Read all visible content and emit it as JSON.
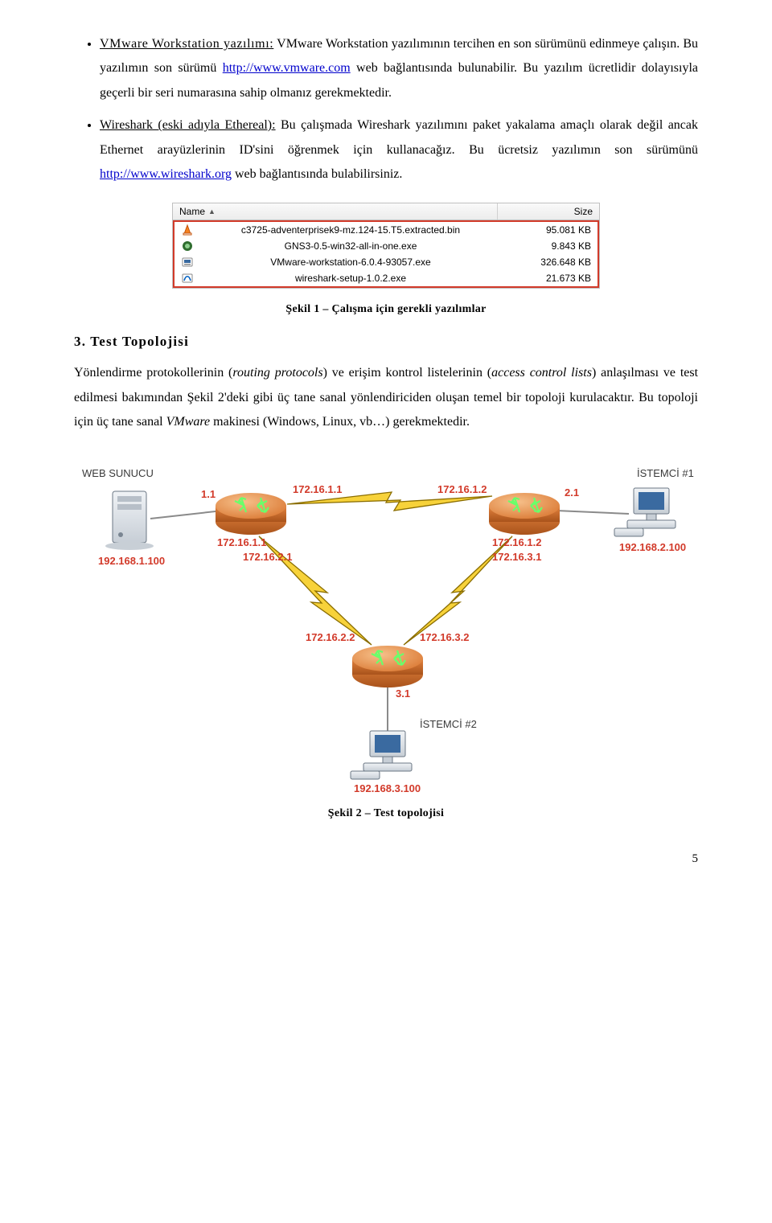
{
  "bullets": {
    "item1": {
      "title": "VMware Workstation yazılımı:",
      "pre": " VMware Workstation yazılımının tercihen en son sürümünü edinmeye çalışın. Bu yazılımın son sürümü ",
      "link": "http://www.vmware.com",
      "post": " web bağlantısında bulunabilir. Bu yazılım ücretlidir dolayısıyla geçerli bir seri numarasına sahip olmanız gerekmektedir."
    },
    "item2": {
      "title": "Wireshark (eski adıyla Ethereal):",
      "pre": " Bu çalışmada Wireshark yazılımını paket yakalama amaçlı olarak değil ancak Ethernet arayüzlerinin ID'sini öğrenmek için kullanacağız. Bu ücretsiz yazılımın son sürümünü ",
      "link": "http://www.wireshark.org",
      "post": " web bağlantısında bulabilirsiniz."
    }
  },
  "filelist": {
    "header_name": "Name",
    "header_size": "Size",
    "rows": [
      {
        "name": "c3725-adventerprisek9-mz.124-15.T5.extracted.bin",
        "size": "95.081 KB",
        "icon": "vlc"
      },
      {
        "name": "GNS3-0.5-win32-all-in-one.exe",
        "size": "9.843 KB",
        "icon": "gns3"
      },
      {
        "name": "VMware-workstation-6.0.4-93057.exe",
        "size": "326.648 KB",
        "icon": "vmw"
      },
      {
        "name": "wireshark-setup-1.0.2.exe",
        "size": "21.673 KB",
        "icon": "ws"
      }
    ]
  },
  "caption1": "Şekil 1 – Çalışma için gerekli yazılımlar",
  "section3_title": "3. Test Topolojisi",
  "section3_para": "Yönlendirme protokollerinin (routing protocols) ve erişim kontrol listelerinin (access control lists) anlaşılması ve test edilmesi bakımından Şekil 2'deki gibi üç tane sanal yönlendiriciden oluşan temel bir topoloji kurulacaktır. Bu topoloji için üç tane sanal VMware makinesi (Windows, Linux, vb…) gerekmektedir.",
  "topology": {
    "labels": {
      "web_sunucu": "WEB SUNUCU",
      "istemci1": "İSTEMCİ #1",
      "istemci2": "İSTEMCİ #2"
    },
    "r1_left_if": "1.1",
    "r1_right_if": "172.16.1.1",
    "r2_left_if": "172.16.1.2",
    "r2_right_if": "2.1",
    "r1_down_if": "172.16.2.1",
    "r2_down_if": "172.16.3.1",
    "r3_left_if": "172.16.2.2",
    "r3_right_if": "172.16.3.2",
    "r3_down_if": "3.1",
    "server_ip": "192.168.1.100",
    "r1_ip": "172.16.1.1",
    "r2_ip": "172.16.1.2",
    "c1_ip": "192.168.2.100",
    "c2_ip": "192.168.3.100",
    "colors": {
      "red": "#d23a2a",
      "router_body": "#e3833f",
      "router_top": "#f2a85e",
      "link_yellow": "#f7d23a",
      "link_stroke": "#8a6d00",
      "pc_body": "#dce1e6",
      "pc_border": "#6b7784"
    }
  },
  "caption2": "Şekil 2 – Test topolojisi",
  "page_number": "5"
}
